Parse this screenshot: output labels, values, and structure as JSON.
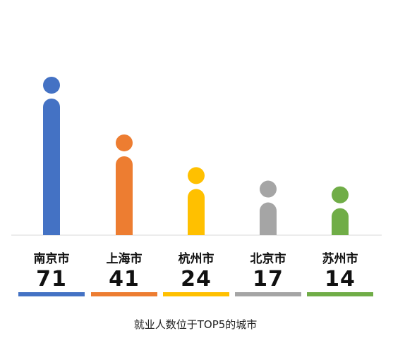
{
  "chart_data": {
    "type": "bar",
    "title": "",
    "caption": "就业人数位于TOP5的城市",
    "categories": [
      "南京市",
      "上海市",
      "杭州市",
      "北京市",
      "苏州市"
    ],
    "values": [
      71,
      41,
      24,
      17,
      14
    ],
    "value_labels": [
      "71",
      "41",
      "24",
      "17",
      "14"
    ],
    "colors": [
      "#4472C4",
      "#ED7D31",
      "#FFC000",
      "#A5A5A5",
      "#70AD47"
    ],
    "xlabel": "",
    "ylabel": "",
    "ylim": [
      0,
      71
    ],
    "grid": false,
    "legend": "none"
  }
}
